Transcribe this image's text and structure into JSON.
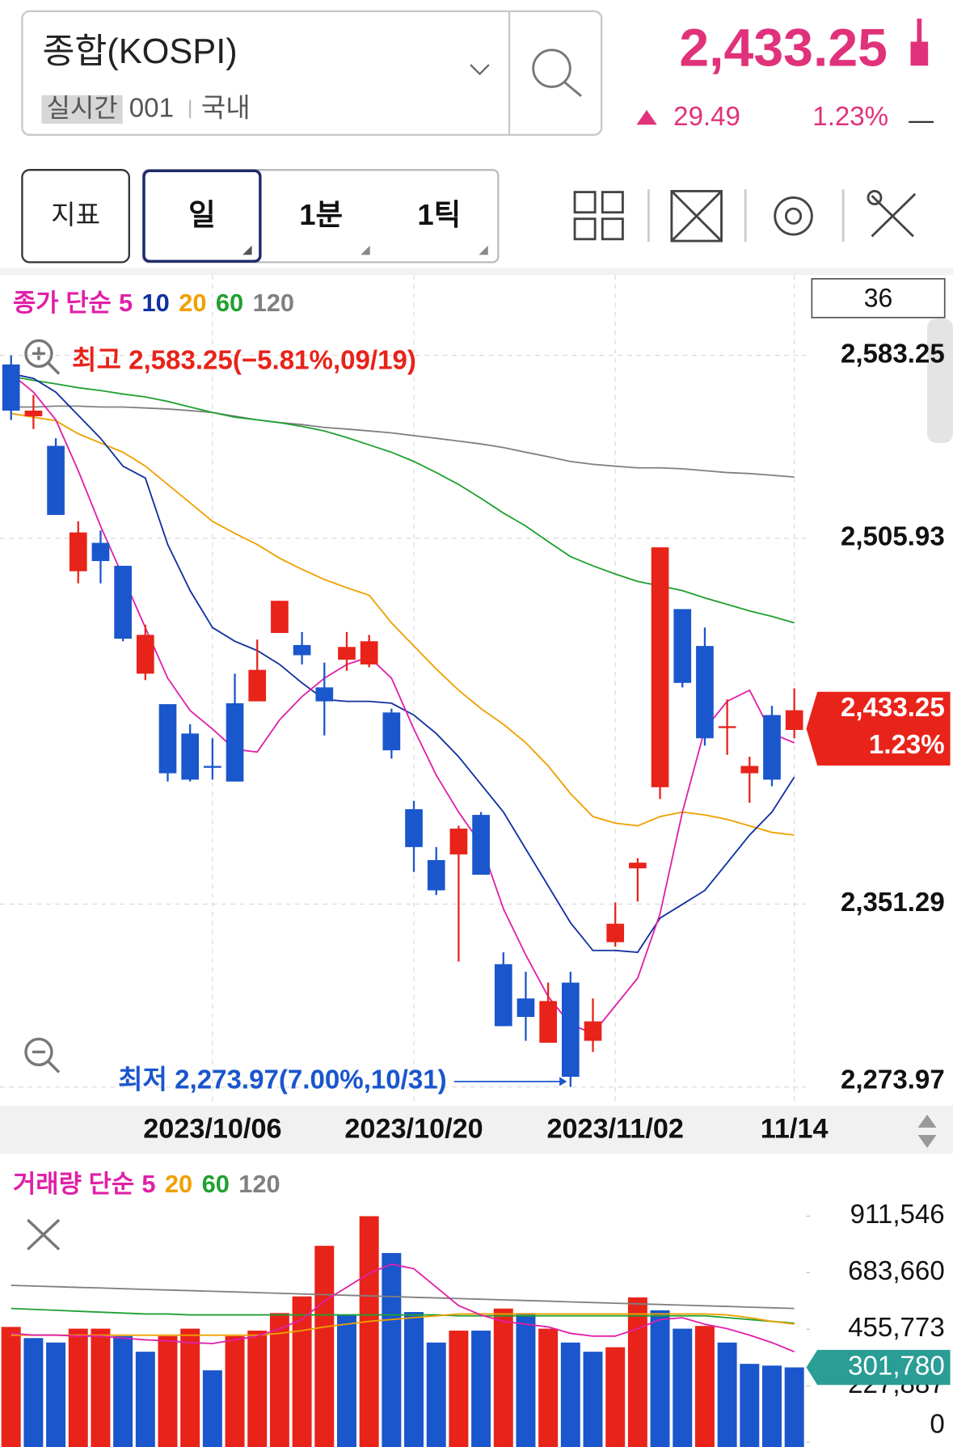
{
  "header": {
    "name": "종합(KOSPI)",
    "tag": "실시간",
    "code": "001",
    "market": "국내",
    "price": "2,433.25",
    "change": "29.49",
    "change_pct": "1.23%"
  },
  "toolbar": {
    "indicator": "지표",
    "periods": [
      "일",
      "1분",
      "1틱"
    ]
  },
  "chart_data": [
    {
      "type": "candlestick",
      "visible_count": 36,
      "legend_prefix": "종가 단순",
      "categories": [
        null,
        null,
        null,
        null,
        null,
        null,
        null,
        null,
        null,
        "2023/10/06",
        null,
        null,
        null,
        null,
        null,
        null,
        null,
        null,
        "2023/10/20",
        null,
        null,
        null,
        null,
        null,
        null,
        null,
        null,
        "2023/11/02",
        null,
        null,
        null,
        null,
        null,
        null,
        null,
        "11/14"
      ],
      "open": [
        2579.4,
        2557.5,
        2545.0,
        2492.0,
        2504.0,
        2494.3,
        2448.7,
        2435.8,
        2423.4,
        2409.7,
        2436.2,
        2437.0,
        2465.9,
        2460.8,
        2442.9,
        2454.6,
        2452.6,
        2432.3,
        2391.4,
        2369.9,
        2372.3,
        2389.0,
        2325.9,
        2311.4,
        2292.7,
        2318.1,
        2293.5,
        2335.2,
        2366.4,
        2400.7,
        2476.0,
        2460.4,
        2425.7,
        2406.6,
        2431.2,
        2424.9
      ],
      "high": [
        2583.25,
        2566.5,
        2548.2,
        2513.1,
        2509.2,
        2494.3,
        2469.4,
        2435.8,
        2427.3,
        2421.4,
        2448.7,
        2463.1,
        2479.5,
        2466.3,
        2453.4,
        2466.3,
        2465.1,
        2433.9,
        2394.9,
        2375.4,
        2384.4,
        2390.2,
        2330.9,
        2322.7,
        2318.1,
        2322.7,
        2311.4,
        2352.0,
        2370.7,
        2502.1,
        2476.0,
        2468.2,
        2437.8,
        2413.6,
        2435.1,
        2442.5
      ],
      "low": [
        2555.9,
        2552.1,
        2515.8,
        2486.9,
        2486.9,
        2462.4,
        2446.0,
        2403.1,
        2403.1,
        2403.9,
        2403.1,
        2437.0,
        2465.9,
        2452.6,
        2422.6,
        2449.9,
        2451.4,
        2412.8,
        2364.9,
        2355.1,
        2327.0,
        2363.7,
        2299.7,
        2293.5,
        2292.7,
        2273.97,
        2288.8,
        2333.3,
        2352.4,
        2395.7,
        2442.9,
        2418.3,
        2414.4,
        2394.1,
        2401.1,
        2421.4
      ],
      "close": [
        2559.9,
        2559.9,
        2515.8,
        2508.4,
        2496.3,
        2463.5,
        2465.1,
        2406.6,
        2403.9,
        2408.9,
        2403.1,
        2450.3,
        2479.5,
        2456.5,
        2437.0,
        2460.0,
        2462.4,
        2416.3,
        2375.4,
        2357.1,
        2383.2,
        2363.7,
        2299.7,
        2303.6,
        2310.3,
        2278.3,
        2301.7,
        2343.0,
        2368.8,
        2502.1,
        2444.8,
        2421.4,
        2426.5,
        2409.7,
        2403.9,
        2433.25
      ],
      "up_color": "#e8231a",
      "down_color": "#1a56cc",
      "series": [
        {
          "name": "5",
          "color": "#e020a8",
          "values": [
            2575.5,
            2567.7,
            2556.0,
            2534.5,
            2511.1,
            2489.7,
            2468.2,
            2446.8,
            2433.1,
            2425.3,
            2416.7,
            2415.6,
            2429.2,
            2439.0,
            2446.8,
            2452.6,
            2455.7,
            2446.8,
            2425.3,
            2405.8,
            2390.2,
            2376.6,
            2349.3,
            2329.8,
            2312.2,
            2300.5,
            2296.6,
            2308.3,
            2320.0,
            2347.3,
            2390.2,
            2425.3,
            2437.0,
            2441.7,
            2423.4,
            2419.5
          ]
        },
        {
          "name": "10",
          "color": "#1030a0",
          "values": [
            2575.5,
            2573.5,
            2567.7,
            2557.9,
            2548.2,
            2536.4,
            2531.4,
            2503.3,
            2483.8,
            2468.2,
            2462.4,
            2458.5,
            2452.6,
            2444.8,
            2437.8,
            2437.0,
            2437.0,
            2436.2,
            2431.2,
            2423.4,
            2413.6,
            2401.9,
            2390.2,
            2374.6,
            2359.0,
            2343.4,
            2331.7,
            2331.7,
            2330.9,
            2345.4,
            2351.2,
            2357.1,
            2368.7,
            2380.5,
            2390.2,
            2405.0
          ]
        },
        {
          "name": "20",
          "color": "#f0a000",
          "values": [
            2558.7,
            2557.1,
            2555.6,
            2550.1,
            2546.2,
            2542.3,
            2536.5,
            2528.7,
            2520.9,
            2513.1,
            2508.0,
            2503.3,
            2497.5,
            2492.8,
            2488.5,
            2485.0,
            2481.9,
            2470.2,
            2460.4,
            2450.7,
            2441.7,
            2433.9,
            2427.3,
            2419.5,
            2409.7,
            2398.0,
            2388.3,
            2385.5,
            2384.4,
            2388.3,
            2390.2,
            2389.0,
            2387.1,
            2384.4,
            2381.6,
            2380.5
          ]
        },
        {
          "name": "60",
          "color": "#20a030",
          "values": [
            2574.3,
            2572.7,
            2571.2,
            2569.6,
            2568.4,
            2566.9,
            2565.7,
            2563.8,
            2561.4,
            2559.1,
            2557.1,
            2556.0,
            2554.8,
            2553.2,
            2551.3,
            2548.5,
            2545.4,
            2542.3,
            2538.4,
            2533.7,
            2528.7,
            2522.8,
            2516.6,
            2511.1,
            2504.5,
            2498.2,
            2494.3,
            2490.8,
            2487.7,
            2485.8,
            2483.8,
            2480.7,
            2478.0,
            2475.2,
            2472.9,
            2470.2
          ]
        },
        {
          "name": "120",
          "color": "#808080",
          "values": [
            2561.4,
            2561.4,
            2561.8,
            2561.8,
            2561.4,
            2561.4,
            2561.0,
            2560.6,
            2559.9,
            2559.1,
            2557.5,
            2556.0,
            2554.8,
            2554.0,
            2552.8,
            2552.1,
            2551.3,
            2550.5,
            2549.3,
            2548.2,
            2547.0,
            2545.8,
            2544.3,
            2542.3,
            2540.4,
            2538.4,
            2537.2,
            2536.4,
            2535.7,
            2535.7,
            2535.3,
            2534.5,
            2533.7,
            2533.3,
            2532.6,
            2531.8
          ]
        }
      ],
      "ylim": [
        2273.97,
        2583.25
      ],
      "yticks": [
        {
          "value": 2273.97,
          "label": "2,273.97"
        },
        {
          "value": 2351.29,
          "label": "2,351.29"
        },
        {
          "value": 2505.93,
          "label": "2,505.93"
        },
        {
          "value": 2583.25,
          "label": "2,583.25"
        }
      ],
      "grid": true,
      "high_annotation": "최고 2,583.25(−5.81%,09/19)",
      "low_annotation": "최저 2,273.97(7.00%,10/31)",
      "last_price_label": "2,433.25",
      "last_change_label": "1.23%",
      "last_label_color": "#e8231a"
    },
    {
      "type": "bar",
      "legend_prefix": "거래량 단순",
      "values": [
        465000,
        420000,
        402000,
        458000,
        458000,
        428000,
        365000,
        428000,
        458000,
        290000,
        428000,
        450000,
        521000,
        588000,
        792000,
        513000,
        911546,
        763000,
        525000,
        402000,
        450000,
        450000,
        539000,
        521000,
        458000,
        402000,
        365000,
        383000,
        584000,
        532000,
        458000,
        469000,
        402000,
        316000,
        309000,
        301780
      ],
      "colors": [
        "#e8231a",
        "#1a56cc",
        "#1a56cc",
        "#e8231a",
        "#e8231a",
        "#1a56cc",
        "#1a56cc",
        "#e8231a",
        "#e8231a",
        "#1a56cc",
        "#e8231a",
        "#e8231a",
        "#e8231a",
        "#e8231a",
        "#e8231a",
        "#1a56cc",
        "#e8231a",
        "#1a56cc",
        "#1a56cc",
        "#1a56cc",
        "#e8231a",
        "#1a56cc",
        "#e8231a",
        "#1a56cc",
        "#e8231a",
        "#1a56cc",
        "#1a56cc",
        "#e8231a",
        "#e8231a",
        "#1a56cc",
        "#1a56cc",
        "#e8231a",
        "#1a56cc",
        "#1a56cc",
        "#1a56cc",
        "#1a56cc"
      ],
      "series": [
        {
          "name": "5",
          "color": "#e020a8",
          "values": [
            439000,
            432000,
            432000,
            428000,
            428000,
            420000,
            413000,
            409000,
            402000,
            398000,
            413000,
            428000,
            458000,
            495000,
            569000,
            625000,
            681000,
            718000,
            700000,
            625000,
            551000,
            513000,
            487000,
            476000,
            465000,
            439000,
            428000,
            428000,
            458000,
            495000,
            502000,
            476000,
            458000,
            432000,
            402000,
            365000
          ]
        },
        {
          "name": "20",
          "color": "#f0a000",
          "values": [
            431600,
            431600,
            431600,
            431600,
            431600,
            431600,
            431600,
            431600,
            431600,
            431600,
            431600,
            431600,
            439000,
            450200,
            465100,
            476200,
            487400,
            494800,
            502300,
            509700,
            517200,
            517200,
            517200,
            517200,
            517200,
            517200,
            517200,
            517200,
            517200,
            517200,
            517200,
            517200,
            513400,
            502300,
            487400,
            476200
          ]
        },
        {
          "name": "60",
          "color": "#20a030",
          "values": [
            539500,
            535800,
            532000,
            528300,
            524600,
            520900,
            517200,
            517200,
            513400,
            513400,
            513400,
            513400,
            513400,
            513400,
            513400,
            513400,
            513400,
            513400,
            513400,
            513400,
            509700,
            509700,
            509700,
            509700,
            509700,
            509700,
            509700,
            509700,
            509700,
            509700,
            509700,
            509700,
            502300,
            494800,
            487400,
            480000
          ]
        },
        {
          "name": "120",
          "color": "#808080",
          "values": [
            632500,
            629900,
            627200,
            624500,
            621900,
            619200,
            616500,
            613900,
            611300,
            608600,
            605900,
            603300,
            600600,
            597900,
            595300,
            592600,
            590000,
            587300,
            584600,
            582000,
            579300,
            576700,
            574000,
            571400,
            568700,
            566000,
            563400,
            560700,
            558100,
            555400,
            552800,
            550100,
            547500,
            544800,
            542100,
            539500
          ]
        }
      ],
      "ylim": [
        0,
        911546
      ],
      "yticks": [
        0,
        {
          "value": 227887,
          "label": "227,887"
        },
        {
          "value": 455773,
          "label": "455,773"
        },
        {
          "value": 683660,
          "label": "683,660"
        },
        {
          "value": 911546,
          "label": "911,546"
        }
      ],
      "last_label": "301,780",
      "last_label_color": "#2a9d95"
    }
  ]
}
